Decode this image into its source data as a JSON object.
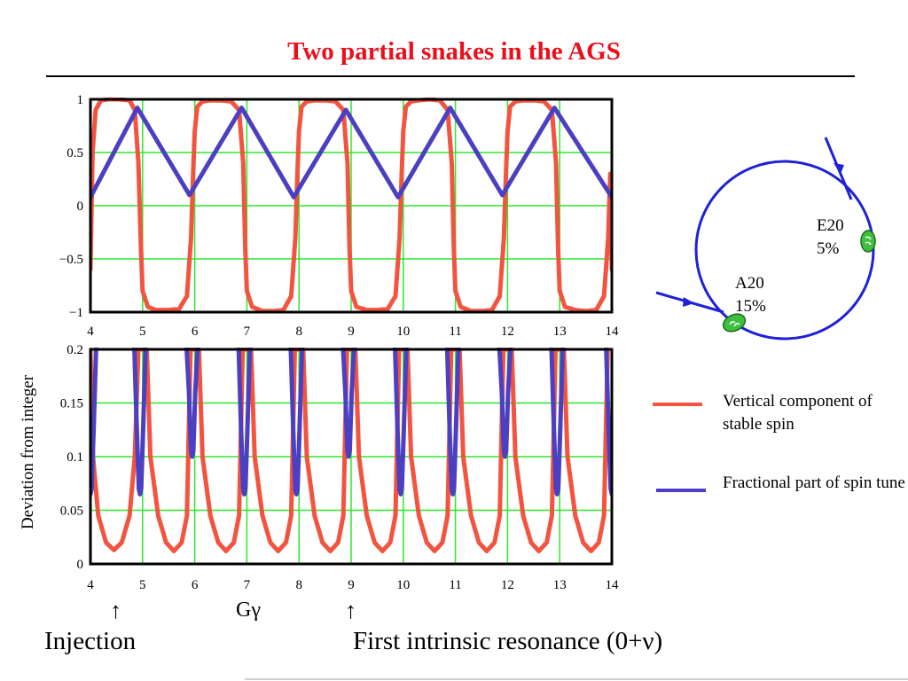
{
  "slide": {
    "title": "Two partial snakes in the AGS",
    "y_axis_label": "Deviation from integer",
    "x_axis_label": "Gγ",
    "annotations": {
      "injection": "Injection",
      "first_resonance": "First intrinsic resonance (0+ν)",
      "injection_arrow": "↑",
      "resonance_arrow": "↑"
    },
    "legend": {
      "vertical_component": "Vertical component of stable spin",
      "fractional_part": "Fractional part of spin tune"
    },
    "ring": {
      "snake_e": {
        "name": "E20",
        "strength": "5%"
      },
      "snake_a": {
        "name": "A20",
        "strength": "15%"
      }
    },
    "colors": {
      "title": "#e8101c",
      "vertical_component": "#f2543f",
      "fractional_part": "#4b3fc2",
      "grid": "#2ee82e",
      "ring": "#1e21d6",
      "snake": "#3fbf3f"
    }
  },
  "chart_data": [
    {
      "type": "line",
      "title": "",
      "xlabel": "",
      "ylabel": "",
      "xlim": [
        4,
        14
      ],
      "ylim": [
        -1,
        1
      ],
      "x_ticks": [
        "4",
        "5",
        "6",
        "7",
        "8",
        "9",
        "10",
        "11",
        "12",
        "13",
        "14"
      ],
      "y_ticks": [
        "1",
        "0.5",
        "0",
        "−0.5",
        "−1"
      ],
      "grid": true,
      "series": [
        {
          "name": "Vertical component of stable spin",
          "color": "#f2543f",
          "x": [
            4,
            4.04,
            4.1,
            4.2,
            4.35,
            4.55,
            4.75,
            4.85,
            4.92,
            4.97,
            5.0,
            5.1,
            5.25,
            5.5,
            5.7,
            5.85,
            5.93,
            5.97,
            6.0,
            6.05,
            6.15,
            6.3,
            6.5,
            6.7,
            6.85,
            6.93,
            6.97,
            7.0,
            7.1,
            7.3,
            7.5,
            7.7,
            7.85,
            7.93,
            7.97,
            8.0,
            8.05,
            8.15,
            8.3,
            8.5,
            8.7,
            8.85,
            8.93,
            8.97,
            9.0,
            9.1,
            9.3,
            9.5,
            9.7,
            9.85,
            9.93,
            9.97,
            10.0,
            10.05,
            10.15,
            10.3,
            10.5,
            10.7,
            10.85,
            10.93,
            10.97,
            11.0,
            11.1,
            11.3,
            11.5,
            11.7,
            11.85,
            11.93,
            11.97,
            12.0,
            12.05,
            12.15,
            12.3,
            12.5,
            12.7,
            12.85,
            12.93,
            12.97,
            13.0,
            13.1,
            13.3,
            13.5,
            13.7,
            13.85,
            13.93,
            13.97,
            14.0
          ],
          "y": [
            -0.6,
            0.5,
            0.9,
            0.99,
            1.0,
            1.0,
            0.99,
            0.9,
            0.4,
            -0.4,
            -0.8,
            -0.95,
            -0.98,
            -0.98,
            -0.97,
            -0.85,
            -0.3,
            0.3,
            0.7,
            0.93,
            0.98,
            0.99,
            0.99,
            0.98,
            0.9,
            0.4,
            -0.4,
            -0.8,
            -0.95,
            -0.99,
            -0.99,
            -0.98,
            -0.85,
            -0.3,
            0.3,
            0.7,
            0.93,
            0.98,
            0.99,
            0.99,
            0.98,
            0.9,
            0.4,
            -0.4,
            -0.8,
            -0.95,
            -0.98,
            -0.98,
            -0.97,
            -0.85,
            -0.3,
            0.3,
            0.7,
            0.93,
            0.98,
            0.99,
            1.0,
            0.99,
            0.9,
            0.4,
            -0.4,
            -0.8,
            -0.95,
            -0.99,
            -0.99,
            -0.98,
            -0.85,
            -0.3,
            0.3,
            0.7,
            0.93,
            0.98,
            0.99,
            0.99,
            0.98,
            0.9,
            0.4,
            -0.4,
            -0.8,
            -0.95,
            -0.98,
            -0.99,
            -0.98,
            -0.85,
            -0.3,
            0.3,
            -0.6
          ]
        },
        {
          "name": "Fractional part of spin tune",
          "color": "#4b3fc2",
          "x": [
            4,
            4.9,
            5.9,
            6.9,
            7.9,
            8.9,
            9.9,
            10.9,
            11.9,
            12.9,
            14
          ],
          "y": [
            0.08,
            0.92,
            0.1,
            0.92,
            0.08,
            0.9,
            0.08,
            0.92,
            0.1,
            0.92,
            0.08
          ]
        }
      ]
    },
    {
      "type": "line",
      "title": "",
      "xlabel": "Gγ",
      "ylabel": "Deviation from integer",
      "xlim": [
        4,
        14
      ],
      "ylim": [
        0,
        0.2
      ],
      "x_ticks": [
        "4",
        "5",
        "6",
        "7",
        "8",
        "9",
        "10",
        "11",
        "12",
        "13",
        "14"
      ],
      "y_ticks": [
        "0.2",
        "0.15",
        "0.1",
        "0.05",
        "0"
      ],
      "grid": true,
      "series": [
        {
          "name": "Vertical component of stable spin",
          "color": "#f2543f",
          "x": [
            4.0,
            4.05,
            4.15,
            4.3,
            4.45,
            4.6,
            4.75,
            4.85,
            4.92,
            5.08,
            5.15,
            5.3,
            5.45,
            5.6,
            5.75,
            5.85,
            5.92,
            6.08,
            6.15,
            6.3,
            6.45,
            6.6,
            6.75,
            6.85,
            6.92,
            7.08,
            7.15,
            7.3,
            7.45,
            7.6,
            7.75,
            7.85,
            7.92,
            8.08,
            8.15,
            8.3,
            8.45,
            8.6,
            8.75,
            8.85,
            8.92,
            9.08,
            9.15,
            9.3,
            9.45,
            9.6,
            9.75,
            9.85,
            9.92,
            10.08,
            10.15,
            10.3,
            10.45,
            10.6,
            10.75,
            10.85,
            10.92,
            11.08,
            11.15,
            11.3,
            11.45,
            11.6,
            11.75,
            11.85,
            11.92,
            12.08,
            12.15,
            12.3,
            12.45,
            12.6,
            12.75,
            12.85,
            12.92,
            13.08,
            13.15,
            13.3,
            13.45,
            13.6,
            13.75,
            13.85,
            13.92
          ],
          "y": [
            0.2,
            0.1,
            0.045,
            0.02,
            0.013,
            0.02,
            0.045,
            0.1,
            0.2,
            0.2,
            0.1,
            0.045,
            0.02,
            0.012,
            0.02,
            0.045,
            0.2,
            0.2,
            0.1,
            0.045,
            0.02,
            0.012,
            0.02,
            0.045,
            0.2,
            0.2,
            0.1,
            0.045,
            0.02,
            0.012,
            0.02,
            0.045,
            0.2,
            0.2,
            0.1,
            0.045,
            0.02,
            0.012,
            0.02,
            0.045,
            0.2,
            0.2,
            0.1,
            0.045,
            0.02,
            0.012,
            0.02,
            0.045,
            0.2,
            0.2,
            0.1,
            0.045,
            0.02,
            0.012,
            0.02,
            0.045,
            0.2,
            0.2,
            0.1,
            0.045,
            0.02,
            0.012,
            0.02,
            0.045,
            0.2,
            0.2,
            0.1,
            0.045,
            0.02,
            0.012,
            0.02,
            0.045,
            0.2,
            0.2,
            0.1,
            0.045,
            0.02,
            0.012,
            0.02,
            0.045,
            0.2
          ]
        },
        {
          "name": "Fractional part of spin tune",
          "color": "#4b3fc2",
          "dips": [
            {
              "center": 4.0,
              "min": 0.065
            },
            {
              "center": 4.95,
              "min": 0.065
            },
            {
              "center": 5.95,
              "min": 0.1
            },
            {
              "center": 6.95,
              "min": 0.065
            },
            {
              "center": 7.95,
              "min": 0.065
            },
            {
              "center": 8.95,
              "min": 0.1
            },
            {
              "center": 9.95,
              "min": 0.065
            },
            {
              "center": 10.95,
              "min": 0.065
            },
            {
              "center": 11.95,
              "min": 0.1
            },
            {
              "center": 12.95,
              "min": 0.065
            },
            {
              "center": 14.0,
              "min": 0.065
            }
          ]
        }
      ]
    }
  ]
}
